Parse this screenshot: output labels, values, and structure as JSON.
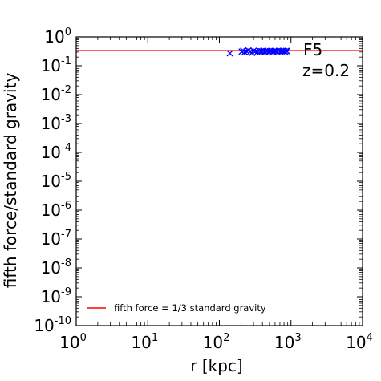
{
  "chart_data": {
    "type": "scatter",
    "xlabel": "r [kpc]",
    "ylabel": "fifth force/standard gravity",
    "xscale": "log",
    "yscale": "log",
    "xlim": [
      1,
      10000
    ],
    "ylim": [
      1e-10,
      1
    ],
    "grid": false,
    "xticks": [
      {
        "value": 1,
        "base": "10",
        "exp": "0"
      },
      {
        "value": 10,
        "base": "10",
        "exp": "1"
      },
      {
        "value": 100,
        "base": "10",
        "exp": "2"
      },
      {
        "value": 1000,
        "base": "10",
        "exp": "3"
      },
      {
        "value": 10000,
        "base": "10",
        "exp": "4"
      }
    ],
    "yticks": [
      {
        "value": 1,
        "base": "10",
        "exp": "0"
      },
      {
        "value": 0.1,
        "base": "10",
        "exp": "-1"
      },
      {
        "value": 0.01,
        "base": "10",
        "exp": "-2"
      },
      {
        "value": 0.001,
        "base": "10",
        "exp": "-3"
      },
      {
        "value": 0.0001,
        "base": "10",
        "exp": "-4"
      },
      {
        "value": 1e-05,
        "base": "10",
        "exp": "-5"
      },
      {
        "value": 1e-06,
        "base": "10",
        "exp": "-6"
      },
      {
        "value": 1e-07,
        "base": "10",
        "exp": "-7"
      },
      {
        "value": 1e-08,
        "base": "10",
        "exp": "-8"
      },
      {
        "value": 1e-09,
        "base": "10",
        "exp": "-9"
      },
      {
        "value": 1e-10,
        "base": "10",
        "exp": "-10"
      }
    ],
    "annotations": [
      "F5",
      "z=0.2"
    ],
    "reference_line": {
      "label": "fifth force = 1/3 standard gravity",
      "y": 0.3333,
      "color": "#ff0000"
    },
    "legend_position": "lower-center",
    "series": [
      {
        "color": "#0000ff",
        "marker": "x",
        "points": [
          [
            140,
            0.27
          ],
          [
            205,
            0.31
          ],
          [
            215,
            0.33
          ],
          [
            225,
            0.3
          ],
          [
            240,
            0.32
          ],
          [
            255,
            0.34
          ],
          [
            270,
            0.31
          ],
          [
            285,
            0.28
          ],
          [
            300,
            0.33
          ],
          [
            320,
            0.32
          ],
          [
            340,
            0.3
          ],
          [
            360,
            0.33
          ],
          [
            375,
            0.31
          ],
          [
            390,
            0.32
          ],
          [
            410,
            0.33
          ],
          [
            430,
            0.31
          ],
          [
            450,
            0.32
          ],
          [
            470,
            0.33
          ],
          [
            490,
            0.3
          ],
          [
            510,
            0.32
          ],
          [
            530,
            0.33
          ],
          [
            550,
            0.31
          ],
          [
            575,
            0.32
          ],
          [
            600,
            0.33
          ],
          [
            625,
            0.32
          ],
          [
            650,
            0.3
          ],
          [
            680,
            0.33
          ],
          [
            710,
            0.31
          ],
          [
            740,
            0.32
          ],
          [
            770,
            0.33
          ],
          [
            800,
            0.32
          ],
          [
            830,
            0.31
          ],
          [
            860,
            0.33
          ],
          [
            880,
            0.32
          ]
        ]
      }
    ]
  }
}
